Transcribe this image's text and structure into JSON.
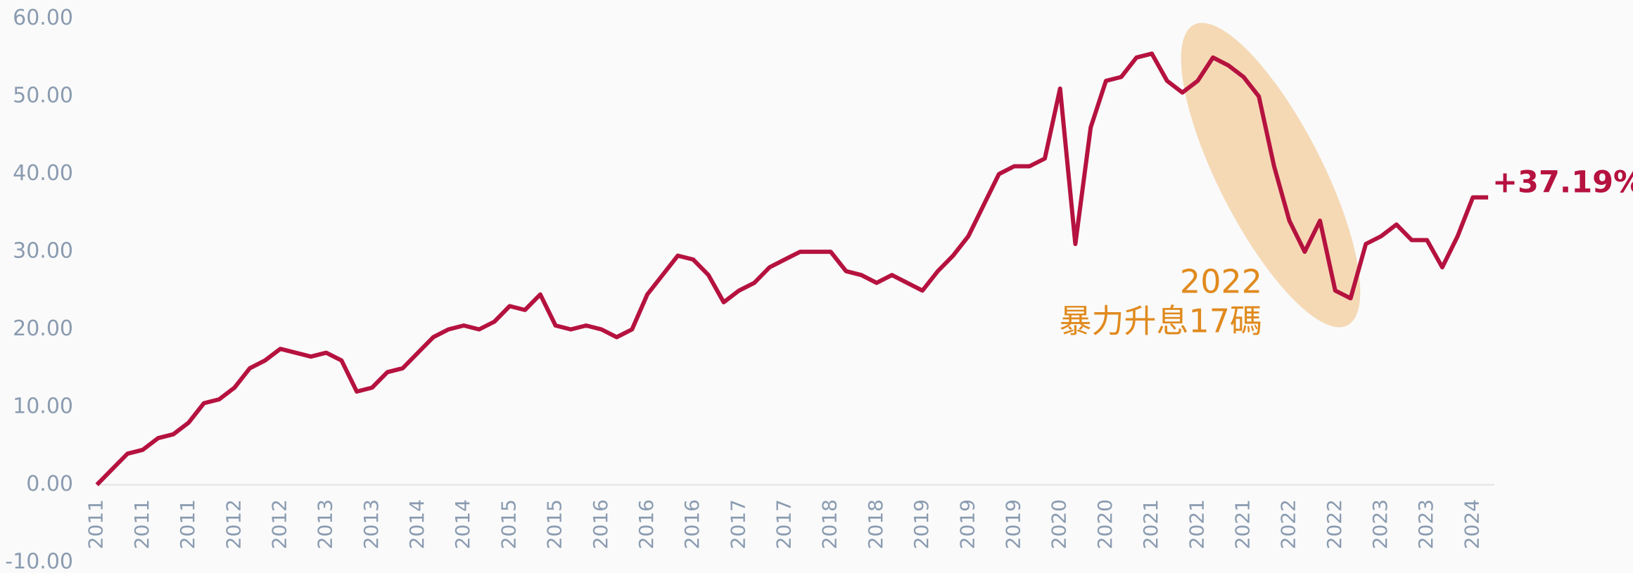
{
  "chart_data": {
    "type": "line",
    "categories": [
      "2011",
      null,
      null,
      "2011",
      null,
      null,
      "2011",
      null,
      null,
      "2012",
      null,
      null,
      "2012",
      null,
      null,
      "2013",
      null,
      null,
      "2013",
      null,
      null,
      "2014",
      null,
      null,
      "2014",
      null,
      null,
      "2015",
      null,
      null,
      "2015",
      null,
      null,
      "2016",
      null,
      null,
      "2016",
      null,
      null,
      "2016",
      null,
      null,
      "2017",
      null,
      null,
      "2017",
      null,
      null,
      "2018",
      null,
      null,
      "2018",
      null,
      null,
      "2019",
      null,
      null,
      "2019",
      null,
      null,
      "2019",
      null,
      null,
      "2020",
      null,
      null,
      "2020",
      null,
      null,
      "2021",
      null,
      null,
      "2021",
      null,
      null,
      "2021",
      null,
      null,
      "2022",
      null,
      null,
      "2022",
      null,
      null,
      "2023",
      null,
      null,
      "2023",
      null,
      null,
      "2024",
      null
    ],
    "series": [
      {
        "color": "#b5123f",
        "values": [
          0,
          2,
          4,
          4.5,
          6,
          6.5,
          8,
          10.5,
          11,
          12.5,
          15,
          16,
          17.5,
          17,
          16.5,
          17,
          16,
          12,
          12.5,
          14.5,
          15,
          17,
          19,
          20,
          20.5,
          20,
          21,
          23,
          22.5,
          24.5,
          20.5,
          20,
          20.5,
          20,
          19,
          20,
          24.5,
          27,
          29.5,
          29,
          27,
          23.5,
          25,
          26,
          28,
          29,
          30,
          30,
          30,
          27.5,
          27,
          26,
          27,
          26,
          25,
          27.5,
          29.5,
          32,
          36,
          40,
          41,
          41,
          42,
          51,
          31,
          46,
          52,
          52.5,
          55,
          55.5,
          52,
          50.5,
          52,
          55,
          54,
          52.5,
          50,
          41,
          34,
          30,
          34,
          25,
          24,
          31,
          32,
          33.5,
          31.5,
          31.5,
          28,
          32,
          37,
          37
        ]
      }
    ],
    "ylim": [
      -10,
      60
    ],
    "yticks": [
      {
        "value": -10,
        "label": "-10.00"
      },
      {
        "value": 0,
        "label": "0.00"
      },
      {
        "value": 10,
        "label": "10.00"
      },
      {
        "value": 20,
        "label": "20.00"
      },
      {
        "value": 30,
        "label": "30.00"
      },
      {
        "value": 40,
        "label": "40.00"
      },
      {
        "value": 50,
        "label": "50.00"
      },
      {
        "value": 60,
        "label": "60.00"
      }
    ],
    "annotations": [
      "2022",
      "暴力升息17碼"
    ],
    "end_label": "+37.19%"
  }
}
